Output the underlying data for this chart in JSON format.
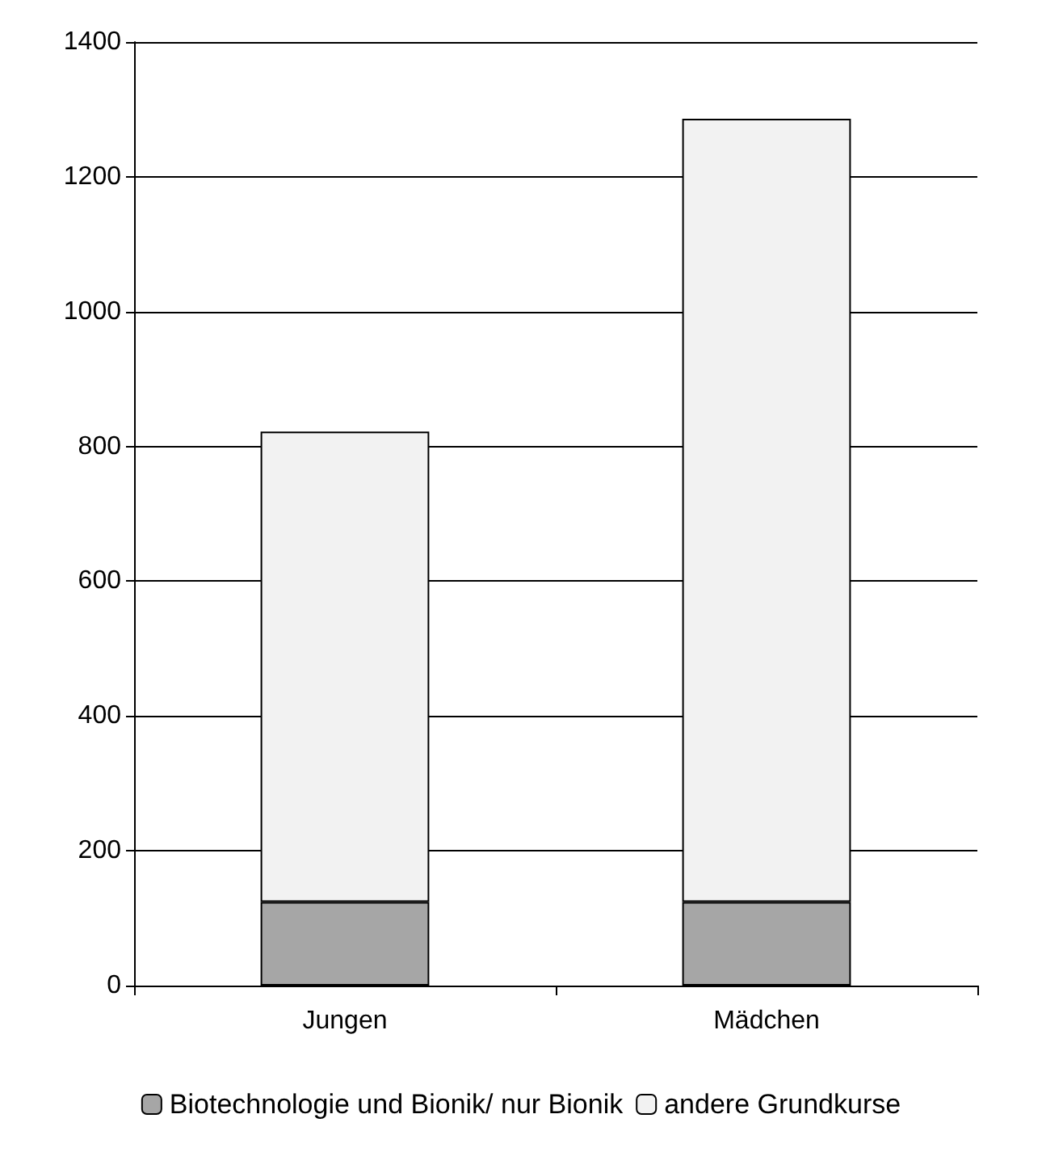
{
  "chart_data": {
    "type": "bar",
    "stacked": true,
    "categories": [
      "Jungen",
      "Mädchen"
    ],
    "series": [
      {
        "name": "Biotechnologie und Bionik/ nur Bionik",
        "color": "#a6a6a6",
        "values": [
          124,
          124
        ]
      },
      {
        "name": "andere Grundkurse",
        "color": "#f2f2f2",
        "values": [
          698,
          1162
        ]
      }
    ],
    "ylim": [
      0,
      1400
    ],
    "yticks": [
      0,
      200,
      400,
      600,
      800,
      1000,
      1200,
      1400
    ],
    "grid": "y",
    "legend": "bottom"
  }
}
